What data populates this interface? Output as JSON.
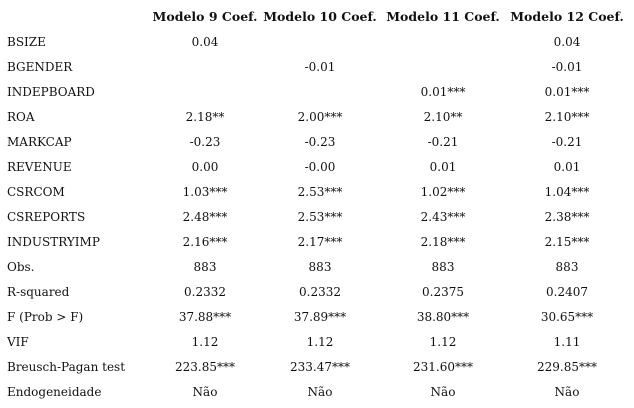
{
  "table": {
    "columns": [
      "Modelo 9 Coef.",
      "Modelo 10 Coef.",
      "Modelo 11 Coef.",
      "Modelo 12 Coef."
    ],
    "rows": [
      {
        "label": "BSIZE",
        "cells": [
          "0.04",
          null,
          null,
          "0.04"
        ]
      },
      {
        "label": "BGENDER",
        "cells": [
          null,
          "-0.01",
          null,
          "-0.01"
        ]
      },
      {
        "label": "INDEPBOARD",
        "cells": [
          null,
          null,
          "0.01***",
          "0.01***"
        ]
      },
      {
        "label": "ROA",
        "cells": [
          "2.18**",
          "2.00***",
          "2.10**",
          "2.10***"
        ]
      },
      {
        "label": "MARKCAP",
        "cells": [
          "-0.23",
          "-0.23",
          "-0.21",
          "-0.21"
        ]
      },
      {
        "label": "REVENUE",
        "cells": [
          "0.00",
          "-0.00",
          "0.01",
          "0.01"
        ]
      },
      {
        "label": "CSRCOM",
        "cells": [
          "1.03***",
          "2.53***",
          "1.02***",
          "1.04***"
        ]
      },
      {
        "label": "CSREPORTS",
        "cells": [
          "2.48***",
          "2.53***",
          "2.43***",
          "2.38***"
        ]
      },
      {
        "label": "INDUSTRYIMP",
        "cells": [
          "2.16***",
          "2.17***",
          "2.18***",
          "2.15***"
        ]
      },
      {
        "label": "Obs.",
        "cells": [
          "883",
          "883",
          "883",
          "883"
        ]
      },
      {
        "label": "R-squared",
        "cells": [
          "0.2332",
          "0.2332",
          "0.2375",
          "0.2407"
        ]
      },
      {
        "label": "F (Prob > F)",
        "cells": [
          "37.88***",
          "37.89***",
          "38.80***",
          "30.65***"
        ]
      },
      {
        "label": "VIF",
        "cells": [
          "1.12",
          "1.12",
          "1.12",
          "1.11"
        ]
      },
      {
        "label": "Breusch-Pagan test",
        "cells": [
          "223.85***",
          "233.47***",
          "231.60***",
          "229.85***"
        ]
      },
      {
        "label": "Endogeneidade",
        "cells": [
          "Não",
          "Não",
          "Não",
          "Não"
        ]
      }
    ]
  }
}
